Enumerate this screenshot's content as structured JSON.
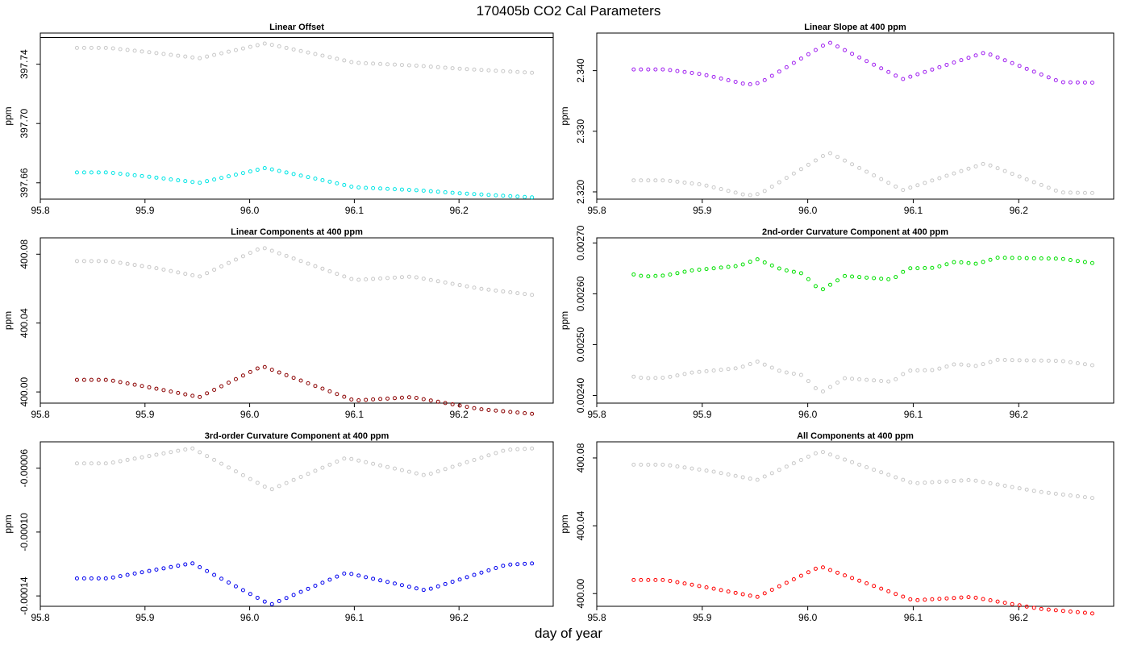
{
  "figure": {
    "title": "170405b   CO2 Cal Parameters",
    "xlabel": "day of year"
  },
  "chart_data": [
    {
      "type": "scatter",
      "title": "Linear Offset",
      "ylabel": "ppm",
      "xlim": [
        95.8,
        96.29
      ],
      "ylim": [
        397.649,
        397.761
      ],
      "xticks": [
        95.8,
        95.9,
        96.0,
        96.1,
        96.2
      ],
      "xtick_labels": [
        "95.8",
        "95.9",
        "96.0",
        "96.1",
        "96.2"
      ],
      "yticks": [
        397.66,
        397.7,
        397.74
      ],
      "ytick_labels": [
        "397.66",
        "397.70",
        "397.74"
      ],
      "hline": 397.758,
      "x_start": 95.835,
      "x_step": 0.0069,
      "n": 64,
      "series": [
        {
          "name": "reference",
          "color": "#c8c8c8",
          "knots": [
            [
              95.835,
              397.751
            ],
            [
              95.865,
              397.751
            ],
            [
              95.905,
              397.748
            ],
            [
              95.952,
              397.744
            ],
            [
              96.015,
              397.754
            ],
            [
              96.075,
              397.745
            ],
            [
              96.1,
              397.741
            ],
            [
              96.16,
              397.739
            ],
            [
              96.2,
              397.737
            ],
            [
              96.275,
              397.734
            ]
          ]
        },
        {
          "name": "current",
          "color": "#00e5e5",
          "knots": [
            [
              95.835,
              397.667
            ],
            [
              95.865,
              397.667
            ],
            [
              95.905,
              397.664
            ],
            [
              95.952,
              397.66
            ],
            [
              96.015,
              397.67
            ],
            [
              96.075,
              397.661
            ],
            [
              96.1,
              397.657
            ],
            [
              96.16,
              397.655
            ],
            [
              96.2,
              397.653
            ],
            [
              96.275,
              397.65
            ]
          ]
        }
      ]
    },
    {
      "type": "scatter",
      "title": "Linear Slope at 400 ppm",
      "ylabel": "ppm",
      "xlim": [
        95.8,
        96.29
      ],
      "ylim": [
        2.3188,
        2.3462
      ],
      "xticks": [
        95.8,
        95.9,
        96.0,
        96.1,
        96.2
      ],
      "xtick_labels": [
        "95.8",
        "95.9",
        "96.0",
        "96.1",
        "96.2"
      ],
      "yticks": [
        2.32,
        2.33,
        2.34
      ],
      "ytick_labels": [
        "2.320",
        "2.330",
        "2.340"
      ],
      "x_start": 95.835,
      "x_step": 0.0069,
      "n": 64,
      "series": [
        {
          "name": "reference",
          "color": "#c8c8c8",
          "knots": [
            [
              95.835,
              2.3219
            ],
            [
              95.865,
              2.3219
            ],
            [
              95.9,
              2.3212
            ],
            [
              95.943,
              2.3194
            ],
            [
              95.955,
              2.3197
            ],
            [
              96.02,
              2.3265
            ],
            [
              96.09,
              2.3203
            ],
            [
              96.168,
              2.3247
            ],
            [
              96.24,
              2.3199
            ],
            [
              96.275,
              2.3198
            ]
          ]
        },
        {
          "name": "current",
          "color": "#a020f0",
          "knots": [
            [
              95.835,
              2.3402
            ],
            [
              95.865,
              2.3402
            ],
            [
              95.9,
              2.3394
            ],
            [
              95.943,
              2.3377
            ],
            [
              95.955,
              2.338
            ],
            [
              96.02,
              2.3447
            ],
            [
              96.09,
              2.3386
            ],
            [
              96.168,
              2.343
            ],
            [
              96.24,
              2.3381
            ],
            [
              96.275,
              2.338
            ]
          ]
        }
      ]
    },
    {
      "type": "scatter",
      "title": "Linear Components at 400 ppm",
      "ylabel": "ppm",
      "xlim": [
        95.8,
        96.29
      ],
      "ylim": [
        399.9935,
        400.0895
      ],
      "xticks": [
        95.8,
        95.9,
        96.0,
        96.1,
        96.2
      ],
      "xtick_labels": [
        "95.8",
        "95.9",
        "96.0",
        "96.1",
        "96.2"
      ],
      "yticks": [
        400.0,
        400.04,
        400.08
      ],
      "ytick_labels": [
        "400.00",
        "400.04",
        "400.08"
      ],
      "x_start": 95.835,
      "x_step": 0.0069,
      "n": 64,
      "series": [
        {
          "name": "reference",
          "color": "#c8c8c8",
          "knots": [
            [
              95.835,
              400.076
            ],
            [
              95.865,
              400.076
            ],
            [
              95.91,
              400.072
            ],
            [
              95.952,
              400.067
            ],
            [
              96.012,
              400.084
            ],
            [
              96.1,
              400.065
            ],
            [
              96.155,
              400.067
            ],
            [
              96.22,
              400.06
            ],
            [
              96.275,
              400.056
            ]
          ]
        },
        {
          "name": "current",
          "color": "#8b0000",
          "knots": [
            [
              95.835,
              400.007
            ],
            [
              95.865,
              400.007
            ],
            [
              95.91,
              400.002
            ],
            [
              95.952,
              399.997
            ],
            [
              96.012,
              400.015
            ],
            [
              96.1,
              399.995
            ],
            [
              96.155,
              399.997
            ],
            [
              96.22,
              399.99
            ],
            [
              96.275,
              399.987
            ]
          ]
        }
      ]
    },
    {
      "type": "scatter",
      "title": "2nd-order Curvature Component at 400 ppm",
      "ylabel": "ppm",
      "xlim": [
        95.8,
        96.29
      ],
      "ylim": [
        0.002385,
        0.00271
      ],
      "xticks": [
        95.8,
        95.9,
        96.0,
        96.1,
        96.2
      ],
      "xtick_labels": [
        "95.8",
        "95.9",
        "96.0",
        "96.1",
        "96.2"
      ],
      "yticks": [
        0.0024,
        0.0025,
        0.0026,
        0.0027
      ],
      "ytick_labels": [
        "0.00240",
        "0.00250",
        "0.00260",
        "0.00270"
      ],
      "x_start": 95.835,
      "x_step": 0.0069,
      "n": 64,
      "series": [
        {
          "name": "reference",
          "color": "#c8c8c8",
          "knots": [
            [
              95.835,
              0.002437
            ],
            [
              95.845,
              0.002434
            ],
            [
              95.865,
              0.002435
            ],
            [
              95.89,
              0.002445
            ],
            [
              95.935,
              0.002454
            ],
            [
              95.952,
              0.002467
            ],
            [
              95.975,
              0.002447
            ],
            [
              95.995,
              0.00244
            ],
            [
              96.012,
              0.002405
            ],
            [
              96.035,
              0.002434
            ],
            [
              96.08,
              0.002427
            ],
            [
              96.095,
              0.002449
            ],
            [
              96.12,
              0.00245
            ],
            [
              96.14,
              0.002462
            ],
            [
              96.16,
              0.002458
            ],
            [
              96.18,
              0.00247
            ],
            [
              96.24,
              0.002468
            ],
            [
              96.275,
              0.002458
            ]
          ]
        },
        {
          "name": "current",
          "color": "#00e000",
          "knots": [
            [
              95.835,
              0.002638
            ],
            [
              95.845,
              0.002634
            ],
            [
              95.865,
              0.002636
            ],
            [
              95.89,
              0.002646
            ],
            [
              95.935,
              0.002655
            ],
            [
              95.952,
              0.002668
            ],
            [
              95.975,
              0.002648
            ],
            [
              95.995,
              0.00264
            ],
            [
              96.012,
              0.002606
            ],
            [
              96.035,
              0.002635
            ],
            [
              96.08,
              0.002628
            ],
            [
              96.095,
              0.00265
            ],
            [
              96.12,
              0.002651
            ],
            [
              96.14,
              0.002663
            ],
            [
              96.16,
              0.002659
            ],
            [
              96.18,
              0.002671
            ],
            [
              96.24,
              0.002669
            ],
            [
              96.275,
              0.002659
            ]
          ]
        }
      ]
    },
    {
      "type": "scatter",
      "title": "3rd-order Curvature Component at 400 ppm",
      "ylabel": "ppm",
      "xlim": [
        95.8,
        96.29
      ],
      "ylim": [
        -0.0001465,
        -4.35e-05
      ],
      "xticks": [
        95.8,
        95.9,
        96.0,
        96.1,
        96.2
      ],
      "xtick_labels": [
        "95.8",
        "95.9",
        "96.0",
        "96.1",
        "96.2"
      ],
      "yticks": [
        -0.00014,
        -0.0001,
        -6e-05
      ],
      "ytick_labels": [
        "-0.00014",
        "-0.00010",
        "-0.00006"
      ],
      "x_start": 95.835,
      "x_step": 0.0069,
      "n": 64,
      "series": [
        {
          "name": "reference",
          "color": "#c8c8c8",
          "knots": [
            [
              95.835,
              -5.7e-05
            ],
            [
              95.865,
              -5.7e-05
            ],
            [
              95.945,
              -4.75e-05
            ],
            [
              96.02,
              -7.35e-05
            ],
            [
              96.092,
              -5.35e-05
            ],
            [
              96.168,
              -6.45e-05
            ],
            [
              96.245,
              -4.85e-05
            ],
            [
              96.275,
              -4.75e-05
            ]
          ]
        },
        {
          "name": "current",
          "color": "#0000ee",
          "knots": [
            [
              95.835,
              -0.000129
            ],
            [
              95.865,
              -0.000129
            ],
            [
              95.945,
              -0.0001195
            ],
            [
              96.02,
              -0.0001455
            ],
            [
              96.092,
              -0.0001255
            ],
            [
              96.168,
              -0.0001365
            ],
            [
              96.245,
              -0.0001205
            ],
            [
              96.275,
              -0.0001195
            ]
          ]
        }
      ]
    },
    {
      "type": "scatter",
      "title": "All Components at 400 ppm",
      "ylabel": "ppm",
      "xlim": [
        95.8,
        96.29
      ],
      "ylim": [
        399.9925,
        400.0895
      ],
      "xticks": [
        95.8,
        95.9,
        96.0,
        96.1,
        96.2
      ],
      "xtick_labels": [
        "95.8",
        "95.9",
        "96.0",
        "96.1",
        "96.2"
      ],
      "yticks": [
        400.0,
        400.04,
        400.08
      ],
      "ytick_labels": [
        "400.00",
        "400.04",
        "400.08"
      ],
      "x_start": 95.835,
      "x_step": 0.0069,
      "n": 64,
      "series": [
        {
          "name": "reference",
          "color": "#c8c8c8",
          "knots": [
            [
              95.835,
              400.076
            ],
            [
              95.865,
              400.076
            ],
            [
              95.91,
              400.072
            ],
            [
              95.952,
              400.067
            ],
            [
              96.012,
              400.084
            ],
            [
              96.1,
              400.065
            ],
            [
              96.155,
              400.067
            ],
            [
              96.22,
              400.06
            ],
            [
              96.275,
              400.056
            ]
          ]
        },
        {
          "name": "current",
          "color": "#ff0000",
          "knots": [
            [
              95.835,
              400.008
            ],
            [
              95.865,
              400.008
            ],
            [
              95.91,
              400.003
            ],
            [
              95.952,
              399.998
            ],
            [
              96.012,
              400.016
            ],
            [
              96.1,
              399.996
            ],
            [
              96.155,
              399.998
            ],
            [
              96.22,
              399.991
            ],
            [
              96.275,
              399.988
            ]
          ]
        }
      ]
    }
  ]
}
